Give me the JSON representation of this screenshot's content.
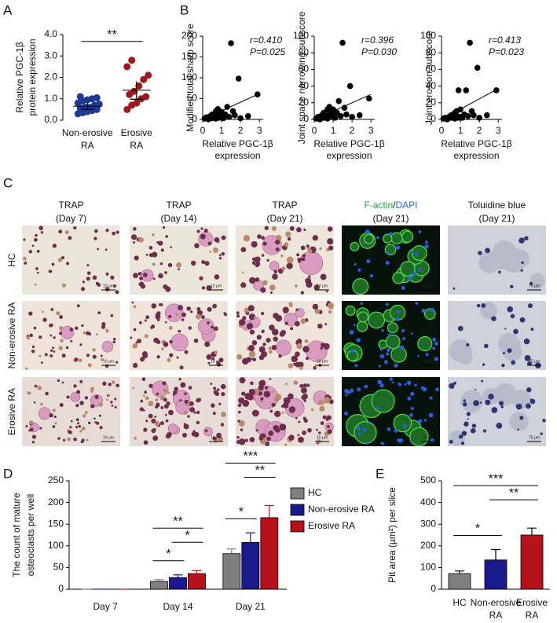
{
  "chart_data": [
    {
      "type": "dotplot",
      "panel": "A",
      "ylabel": [
        "Relative PGC-1β",
        "protein expression"
      ],
      "categories": [
        [
          "Non-erosive",
          "RA"
        ],
        [
          "Erosive",
          "RA"
        ]
      ],
      "values": [
        [
          0.3,
          0.35,
          0.4,
          0.45,
          0.5,
          0.55,
          0.6,
          0.6,
          0.7,
          0.75,
          0.8,
          0.9,
          0.95,
          1.0,
          1.05,
          1.1
        ],
        [
          0.5,
          0.7,
          0.8,
          1.0,
          1.1,
          1.2,
          1.35,
          1.6,
          1.9,
          2.1,
          2.5,
          2.8
        ]
      ],
      "colors": [
        "#1f3a93",
        "#a3171c"
      ],
      "means": [
        0.65,
        1.4
      ],
      "errors": [
        0.15,
        0.42
      ],
      "ylim": [
        0,
        4
      ],
      "yticks": [
        {
          "value": 0,
          "label": "0.0"
        },
        {
          "value": 1,
          "label": "1.0"
        },
        {
          "value": 2,
          "label": "2.0"
        },
        {
          "value": 3,
          "label": "3.0"
        },
        {
          "value": 4,
          "label": "4.0"
        }
      ],
      "significance": [
        {
          "label": "**",
          "from": 0,
          "to": 1
        }
      ]
    },
    {
      "type": "scatter",
      "panel": "B",
      "ylabel": [
        "Modified total sharp score"
      ],
      "xlabel": [
        "Relative PGC-1β",
        "expression"
      ],
      "x": [
        0.1,
        0.2,
        0.3,
        0.4,
        0.5,
        0.5,
        0.6,
        0.7,
        0.7,
        0.8,
        0.8,
        0.9,
        0.9,
        1.0,
        1.0,
        1.1,
        1.2,
        1.3,
        1.4,
        1.5,
        1.6,
        1.7,
        1.9,
        2.0,
        2.4,
        2.9
      ],
      "values": [
        2,
        5,
        0,
        8,
        3,
        12,
        5,
        20,
        2,
        10,
        25,
        15,
        4,
        8,
        18,
        3,
        12,
        30,
        6,
        183,
        20,
        10,
        98,
        3,
        8,
        60
      ],
      "color": "#000000",
      "trendline": {
        "x": [
          0,
          3
        ],
        "y": [
          0,
          62
        ]
      },
      "annotations": [
        "r=0.410",
        "P=0.025"
      ],
      "xlim": [
        0,
        3.2
      ],
      "xticks": [
        0,
        1,
        2,
        3
      ],
      "ylim": [
        0,
        200
      ],
      "yticks": [
        0,
        50,
        100,
        150,
        200
      ]
    },
    {
      "type": "scatter",
      "ylabel": [
        "Joint space narrowing subscore"
      ],
      "xlabel": [
        "Relative PGC-1β",
        "expression"
      ],
      "x": [
        0.1,
        0.2,
        0.3,
        0.4,
        0.5,
        0.5,
        0.6,
        0.7,
        0.7,
        0.8,
        0.8,
        0.9,
        0.9,
        1.0,
        1.0,
        1.1,
        1.2,
        1.3,
        1.4,
        1.5,
        1.6,
        1.7,
        1.9,
        2.0,
        2.4,
        2.9
      ],
      "values": [
        1,
        3,
        0,
        5,
        2,
        8,
        3,
        12,
        1,
        6,
        15,
        10,
        3,
        5,
        12,
        2,
        8,
        22,
        4,
        92,
        14,
        6,
        40,
        3,
        5,
        25
      ],
      "color": "#000000",
      "trendline": {
        "x": [
          0,
          3
        ],
        "y": [
          0,
          30
        ]
      },
      "annotations": [
        "r=0.396",
        "P=0.030"
      ],
      "xlim": [
        0,
        3.2
      ],
      "xticks": [
        0,
        1,
        2,
        3
      ],
      "ylim": [
        0,
        100
      ],
      "yticks": [
        0,
        20,
        40,
        60,
        80,
        100
      ]
    },
    {
      "type": "scatter",
      "ylabel": [
        "Joint erosion subscore"
      ],
      "xlabel": [
        "Relative PGC-1β",
        "expression"
      ],
      "x": [
        0.1,
        0.2,
        0.3,
        0.4,
        0.5,
        0.5,
        0.6,
        0.7,
        0.7,
        0.8,
        0.8,
        0.9,
        0.9,
        1.0,
        1.0,
        1.1,
        1.2,
        1.3,
        1.4,
        1.5,
        1.6,
        1.7,
        1.9,
        2.0,
        2.4,
        2.9
      ],
      "values": [
        1,
        2,
        0,
        3,
        2,
        5,
        3,
        8,
        1,
        4,
        10,
        35,
        2,
        3,
        12,
        2,
        6,
        35,
        4,
        92,
        10,
        5,
        62,
        2,
        5,
        35
      ],
      "color": "#000000",
      "trendline": {
        "x": [
          0,
          3
        ],
        "y": [
          0,
          37
        ]
      },
      "annotations": [
        "r=0.413",
        "P=0.023"
      ],
      "xlim": [
        0,
        3.2
      ],
      "xticks": [
        0,
        1,
        2,
        3
      ],
      "ylim": [
        0,
        100
      ],
      "yticks": [
        0,
        20,
        40,
        60,
        80,
        100
      ]
    },
    {
      "type": "bar",
      "panel": "D",
      "ylabel": [
        "The count of mature",
        "osteoclasts per well"
      ],
      "categories": [
        "Day 7",
        "Day 14",
        "Day 21"
      ],
      "series": [
        {
          "name": "HC",
          "color": "#7f7f7f",
          "values": [
            0,
            18,
            82
          ],
          "errors": [
            0,
            4,
            11
          ]
        },
        {
          "name": "Non-erosive RA",
          "color": "#1a1a8c",
          "values": [
            0,
            27,
            108
          ],
          "errors": [
            0,
            6,
            22
          ]
        },
        {
          "name": "Erosive RA",
          "color": "#b5121b",
          "values": [
            0,
            36,
            165
          ],
          "errors": [
            0,
            7,
            28
          ]
        }
      ],
      "ylim": [
        0,
        250
      ],
      "yticks": [
        0,
        50,
        100,
        150,
        200,
        250
      ],
      "legend": "right",
      "significance": [
        {
          "label": "*",
          "category": 1,
          "from": 0,
          "to": 1
        },
        {
          "label": "*",
          "category": 1,
          "from": 1,
          "to": 2
        },
        {
          "label": "**",
          "category": 1,
          "from": 0,
          "to": 2
        },
        {
          "label": "*",
          "category": 2,
          "from": 0,
          "to": 1
        },
        {
          "label": "**",
          "category": 2,
          "from": 1,
          "to": 2
        },
        {
          "label": "***",
          "category": 2,
          "from": 0,
          "to": 2
        }
      ]
    },
    {
      "type": "bar",
      "panel": "E",
      "ylabel": [
        "Pit area (μm²) per slice"
      ],
      "categories": [
        [
          "HC"
        ],
        [
          "Non-erosive",
          "RA"
        ],
        [
          "Erosive",
          "RA"
        ]
      ],
      "values": [
        72,
        135,
        250
      ],
      "errors": [
        12,
        48,
        32
      ],
      "colors": [
        "#7f7f7f",
        "#1a1a8c",
        "#b5121b"
      ],
      "ylim": [
        0,
        500
      ],
      "yticks": [
        0,
        100,
        200,
        300,
        400,
        500
      ],
      "significance": [
        {
          "label": "*",
          "from": 0,
          "to": 1
        },
        {
          "label": "**",
          "from": 1,
          "to": 2
        },
        {
          "label": "***",
          "from": 0,
          "to": 2
        }
      ]
    }
  ],
  "panel_c": {
    "panel": "C",
    "columns": [
      {
        "title": [
          "TRAP"
        ],
        "subtitle": "(Day 7)",
        "scale_bar": "10 μm"
      },
      {
        "title": [
          "TRAP"
        ],
        "subtitle": "(Day 14)",
        "scale_bar": "10 μm"
      },
      {
        "title": [
          "TRAP"
        ],
        "subtitle": "(Day 21)",
        "scale_bar": "10 μm"
      },
      {
        "title": [
          "F-actin",
          "/",
          "DAPI"
        ],
        "subtitle": "(Day 21)",
        "scale_bar": "25 μm"
      },
      {
        "title": [
          "Toluidine blue"
        ],
        "subtitle": "(Day 21)",
        "scale_bar": "75 μm"
      }
    ],
    "rows": [
      "HC",
      "Non-erosive RA",
      "Erosive RA"
    ]
  }
}
